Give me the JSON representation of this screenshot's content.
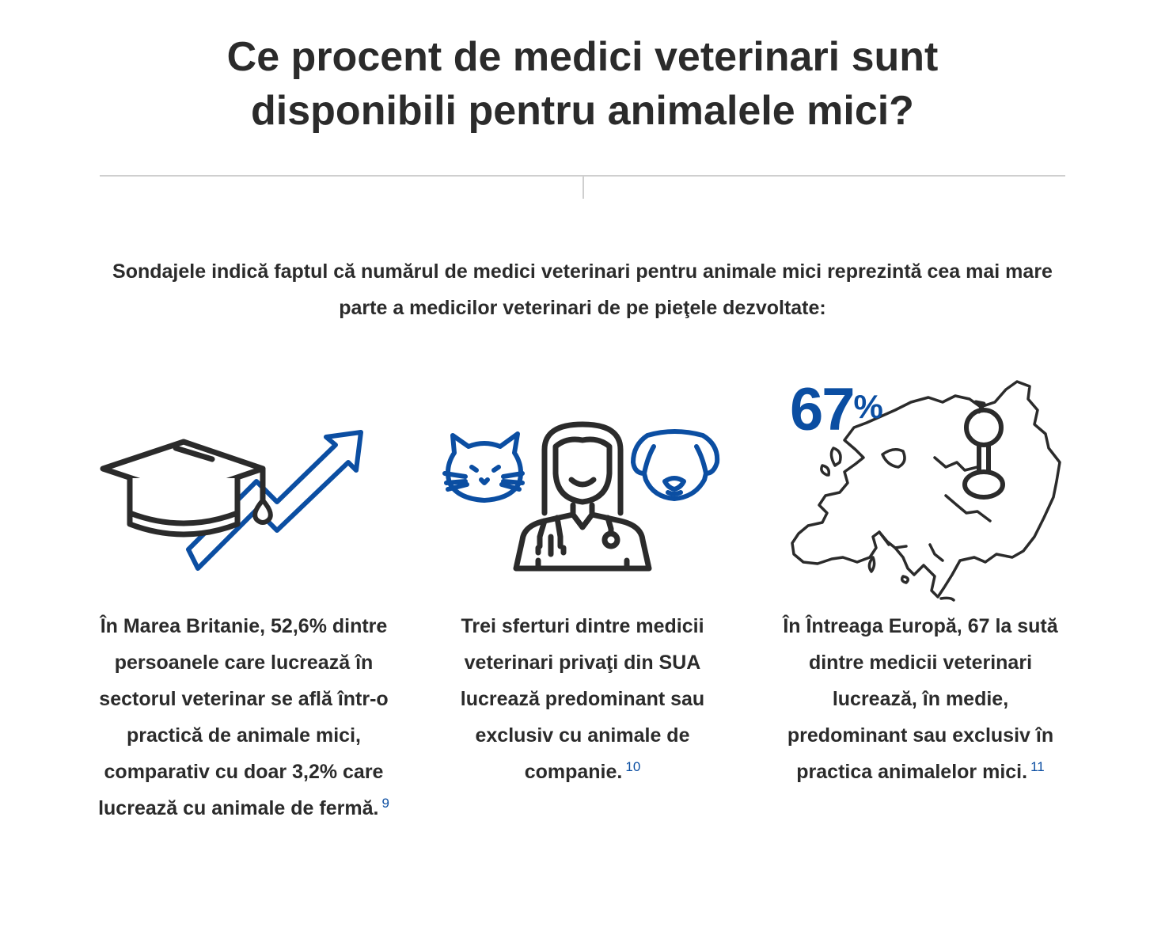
{
  "heading": {
    "line1": "Ce procent de medici veterinari sunt",
    "line2": "disponibili pentru animalele mici?"
  },
  "intro": "Sondajele indică faptul că numărul de medici veterinari pentru animale mici reprezintă cea mai mare parte a medicilor veterinari de pe pieţele dezvoltate:",
  "stat": {
    "value": "67",
    "unit": "%"
  },
  "columns": [
    {
      "icon": "graduation-cap-rising-arrow-icon",
      "text": "În Marea Britanie, 52,6% dintre persoanele care lucrează în sectorul veterinar se află într-o practică de animale mici, comparativ cu doar 3,2% care lucrează cu animale de fermă.",
      "ref": "9"
    },
    {
      "icon": "veterinarian-cat-dog-icon",
      "text": "Trei sferturi dintre medicii veterinari privaţi din SUA lucrează predominant sau exclusiv cu animale de companie.",
      "ref": "10"
    },
    {
      "icon": "europe-map-pin-icon",
      "text": "În Întreaga Europă, 67 la sută dintre medicii veterinari lucrează, în medie, predominant sau exclusiv în practica animalelor mici.",
      "ref": "11"
    }
  ],
  "colors": {
    "text": "#2b2b2b",
    "accent": "#0b4ea2",
    "divider": "#cfcfcf"
  }
}
